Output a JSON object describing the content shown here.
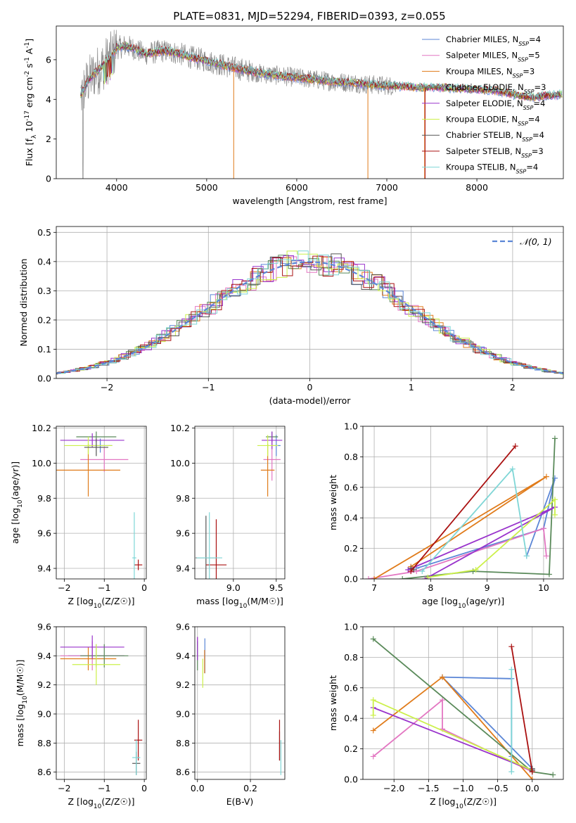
{
  "figure_title": "PLATE=0831, MJD=52294, FIBERID=0393, z=0.055",
  "colors": {
    "Chabrier MILES": "#5b86d6",
    "Salpeter MILES": "#e377c2",
    "Kroupa MILES": "#e07b1a",
    "Chabrier ELODIE": "#5a8a5a",
    "Salpeter ELODIE": "#9933cc",
    "Kroupa ELODIE": "#ccf04a",
    "Chabrier STELIB": "#555555",
    "Salpeter STELIB": "#aa1111",
    "Kroupa STELIB": "#7fd6d6",
    "grid": "#b0b0b0",
    "data": "#888888"
  },
  "chart_data": [
    {
      "id": "spectrum",
      "type": "line",
      "title": "PLATE=0831, MJD=52294, FIBERID=0393, z=0.055",
      "xlabel": "wavelength [Angstrom, rest frame]",
      "ylabel": "Flux [f_λ 10^-17 erg cm^-2 s^-1 A^-1]",
      "xlim": [
        3330,
        8960
      ],
      "ylim": [
        0,
        7.7
      ],
      "xticks": [
        "4000",
        "5000",
        "6000",
        "7000",
        "8000"
      ],
      "yticks": [
        "0",
        "2",
        "4",
        "6"
      ],
      "grid": false,
      "legend": "top-right",
      "data_knots": [
        [
          3600,
          4.2
        ],
        [
          3680,
          4.9
        ],
        [
          3750,
          5.3
        ],
        [
          3800,
          5.5
        ],
        [
          3850,
          5.7
        ],
        [
          3900,
          6.0
        ],
        [
          3950,
          6.2
        ],
        [
          4000,
          6.6
        ],
        [
          4100,
          6.7
        ],
        [
          4200,
          6.55
        ],
        [
          4300,
          6.3
        ],
        [
          4400,
          6.35
        ],
        [
          4500,
          6.45
        ],
        [
          4600,
          6.4
        ],
        [
          4700,
          6.3
        ],
        [
          4800,
          6.15
        ],
        [
          4900,
          6.05
        ],
        [
          5000,
          5.95
        ],
        [
          5200,
          5.7
        ],
        [
          5400,
          5.5
        ],
        [
          5600,
          5.3
        ],
        [
          5800,
          5.2
        ],
        [
          6000,
          5.1
        ],
        [
          6200,
          5.0
        ],
        [
          6400,
          4.9
        ],
        [
          6600,
          4.85
        ],
        [
          6800,
          4.75
        ],
        [
          7000,
          4.7
        ],
        [
          7200,
          4.65
        ],
        [
          7400,
          4.6
        ],
        [
          7600,
          4.6
        ],
        [
          7800,
          4.55
        ],
        [
          8000,
          4.5
        ],
        [
          8200,
          4.45
        ],
        [
          8400,
          4.25
        ],
        [
          8600,
          4.1
        ],
        [
          8800,
          4.2
        ],
        [
          8950,
          4.25
        ]
      ],
      "series": [
        {
          "name": "Chabrier MILES, N_SSP=4"
        },
        {
          "name": "Salpeter MILES, N_SSP=5"
        },
        {
          "name": "Kroupa MILES, N_SSP=3"
        },
        {
          "name": "Chabrier ELODIE, N_SSP=3"
        },
        {
          "name": "Salpeter ELODIE, N_SSP=4"
        },
        {
          "name": "Kroupa ELODIE, N_SSP=4"
        },
        {
          "name": "Chabrier STELIB, N_SSP=4"
        },
        {
          "name": "Salpeter STELIB, N_SSP=3"
        },
        {
          "name": "Kroupa STELIB, N_SSP=4"
        }
      ]
    },
    {
      "id": "residuals",
      "type": "line",
      "xlabel": "(data-model)/error",
      "ylabel": "Normed distribution",
      "xlim": [
        -2.5,
        2.5
      ],
      "ylim": [
        0,
        0.52
      ],
      "xticks": [
        "−2",
        "−1",
        "0",
        "1",
        "2"
      ],
      "yticks": [
        "0.0",
        "0.1",
        "0.2",
        "0.3",
        "0.4",
        "0.5"
      ],
      "grid": true,
      "legend": "top-right",
      "gaussian_label": "𝒩(0, 1)",
      "bin_width": 0.1,
      "histogram_offsets": [
        0.02,
        -0.03,
        0.015,
        -0.01,
        0.04,
        -0.025,
        0.01,
        0.03,
        -0.015
      ],
      "gaussian": {
        "mu": 0,
        "sigma": 1
      }
    },
    {
      "id": "age_vs_Z",
      "type": "scatter",
      "xlabel": "Z [log10(Z/Z☉)]",
      "ylabel": "age  [log10(age/yr)]",
      "xlim": [
        -2.2,
        0.05
      ],
      "ylim": [
        9.34,
        10.21
      ],
      "xticks": [
        "−2",
        "−1",
        "0"
      ],
      "yticks": [
        "9.4",
        "9.6",
        "9.8",
        "10.0",
        "10.2"
      ],
      "grid": true,
      "points": [
        {
          "series": "Chabrier MILES",
          "x": -1.1,
          "y": 10.1,
          "xerr": 0.3,
          "yerr": 0.04
        },
        {
          "series": "Salpeter MILES",
          "x": -1.0,
          "y": 10.02,
          "xerr": 0.6,
          "yerr": 0.07
        },
        {
          "series": "Kroupa MILES",
          "x": -1.4,
          "y": 9.96,
          "xerr": 0.8,
          "yerr": 0.15
        },
        {
          "series": "Chabrier ELODIE",
          "x": -1.2,
          "y": 10.15,
          "xerr": 0.5,
          "yerr": 0.03
        },
        {
          "series": "Salpeter ELODIE",
          "x": -1.3,
          "y": 10.13,
          "xerr": 0.8,
          "yerr": 0.04
        },
        {
          "series": "Kroupa ELODIE",
          "x": -1.4,
          "y": 10.1,
          "xerr": 0.6,
          "yerr": 0.05
        },
        {
          "series": "Chabrier STELIB",
          "x": -1.2,
          "y": 10.09,
          "xerr": 0.3,
          "yerr": 0.05
        },
        {
          "series": "Salpeter STELIB",
          "x": -0.15,
          "y": 9.42,
          "xerr": 0.1,
          "yerr": 0.03
        },
        {
          "series": "Kroupa STELIB",
          "x": -0.25,
          "y": 9.46,
          "xerr": 0.05,
          "yerr": 0.26
        }
      ]
    },
    {
      "id": "age_vs_mass",
      "type": "scatter",
      "xlabel": "mass [log10(M/M☉)]",
      "ylabel": "",
      "xlim": [
        8.55,
        9.6
      ],
      "ylim": [
        9.34,
        10.21
      ],
      "xticks": [
        "9.0",
        "9.5"
      ],
      "yticks": [
        "9.4",
        "9.6",
        "9.8",
        "10.0",
        "10.2"
      ],
      "grid": true,
      "points": [
        {
          "series": "Chabrier MILES",
          "x": 9.5,
          "y": 10.1,
          "xerr": 0.05,
          "yerr": 0.06
        },
        {
          "series": "Salpeter MILES",
          "x": 9.45,
          "y": 10.02,
          "xerr": 0.1,
          "yerr": 0.12
        },
        {
          "series": "Kroupa MILES",
          "x": 9.4,
          "y": 9.96,
          "xerr": 0.08,
          "yerr": 0.15
        },
        {
          "series": "Chabrier ELODIE",
          "x": 9.45,
          "y": 10.15,
          "xerr": 0.07,
          "yerr": 0.03
        },
        {
          "series": "Salpeter ELODIE",
          "x": 9.45,
          "y": 10.13,
          "xerr": 0.12,
          "yerr": 0.05
        },
        {
          "series": "Kroupa ELODIE",
          "x": 9.4,
          "y": 10.1,
          "xerr": 0.12,
          "yerr": 0.06
        },
        {
          "series": "Chabrier STELIB",
          "x": 8.68,
          "y": 9.46,
          "xerr": 0.12,
          "yerr": 0.24
        },
        {
          "series": "Salpeter STELIB",
          "x": 8.8,
          "y": 9.42,
          "xerr": 0.12,
          "yerr": 0.26
        },
        {
          "series": "Kroupa STELIB",
          "x": 8.72,
          "y": 9.46,
          "xerr": 0.15,
          "yerr": 0.26
        }
      ]
    },
    {
      "id": "weight_vs_age",
      "type": "line",
      "xlabel": "age  [log10(age/yr)]",
      "ylabel": "mass weight",
      "xlim": [
        6.8,
        10.35
      ],
      "ylim": [
        0,
        1
      ],
      "xticks": [
        "7",
        "8",
        "9",
        "10"
      ],
      "yticks": [
        "0.0",
        "0.2",
        "0.4",
        "0.6",
        "0.8",
        "1.0"
      ],
      "grid": true,
      "series": [
        {
          "name": "Chabrier MILES",
          "x": [
            7.75,
            10.0,
            10.2,
            9.7
          ],
          "y": [
            0.07,
            0.33,
            0.66,
            0.15
          ]
        },
        {
          "name": "Salpeter MILES",
          "x": [
            6.9,
            7.75,
            10.0,
            10.05
          ],
          "y": [
            0.0,
            0.05,
            0.33,
            0.15
          ]
        },
        {
          "name": "Kroupa MILES",
          "x": [
            7.0,
            10.05,
            7.65
          ],
          "y": [
            0.0,
            0.67,
            0.08
          ]
        },
        {
          "name": "Chabrier ELODIE",
          "x": [
            10.2,
            10.1,
            8.75,
            7.5
          ],
          "y": [
            0.92,
            0.03,
            0.05,
            0.0
          ]
        },
        {
          "name": "Salpeter ELODIE",
          "x": [
            7.6,
            10.2,
            7.9
          ],
          "y": [
            0.06,
            0.47,
            0.0
          ]
        },
        {
          "name": "Kroupa ELODIE",
          "x": [
            7.95,
            8.8,
            10.2,
            10.2
          ],
          "y": [
            0.01,
            0.06,
            0.52,
            0.42
          ]
        },
        {
          "name": "Chabrier STELIB",
          "x": [
            7.7,
            7.65
          ],
          "y": [
            0.06,
            0.07
          ]
        },
        {
          "name": "Salpeter STELIB",
          "x": [
            7.65,
            9.5
          ],
          "y": [
            0.05,
            0.87
          ]
        },
        {
          "name": "Kroupa STELIB",
          "x": [
            7.85,
            9.45,
            9.7
          ],
          "y": [
            0.05,
            0.72,
            0.15
          ]
        }
      ]
    },
    {
      "id": "mass_vs_Z",
      "type": "scatter",
      "xlabel": "Z [log10(Z/Z☉)]",
      "ylabel": "mass [log10(M/M☉)]",
      "xlim": [
        -2.2,
        0.05
      ],
      "ylim": [
        8.55,
        9.6
      ],
      "xticks": [
        "−2",
        "−1",
        "0"
      ],
      "yticks": [
        "8.6",
        "8.8",
        "9.0",
        "9.2",
        "9.4",
        "9.6"
      ],
      "grid": true,
      "points": [
        {
          "series": "Chabrier MILES",
          "x": -1.2,
          "y": 9.4,
          "xerr": 0.7,
          "yerr": 0.08
        },
        {
          "series": "Salpeter MILES",
          "x": -1.3,
          "y": 9.4,
          "xerr": 0.8,
          "yerr": 0.1
        },
        {
          "series": "Kroupa MILES",
          "x": -1.4,
          "y": 9.38,
          "xerr": 0.7,
          "yerr": 0.08
        },
        {
          "series": "Chabrier ELODIE",
          "x": -1.0,
          "y": 9.4,
          "xerr": 0.6,
          "yerr": 0.08
        },
        {
          "series": "Salpeter ELODIE",
          "x": -1.3,
          "y": 9.46,
          "xerr": 0.8,
          "yerr": 0.08
        },
        {
          "series": "Kroupa ELODIE",
          "x": -1.2,
          "y": 9.34,
          "xerr": 0.6,
          "yerr": 0.14
        },
        {
          "series": "Chabrier STELIB",
          "x": -0.2,
          "y": 8.66,
          "xerr": 0.1,
          "yerr": 0.08
        },
        {
          "series": "Salpeter STELIB",
          "x": -0.15,
          "y": 8.82,
          "xerr": 0.1,
          "yerr": 0.14
        },
        {
          "series": "Kroupa STELIB",
          "x": -0.2,
          "y": 8.7,
          "xerr": 0.1,
          "yerr": 0.12
        }
      ]
    },
    {
      "id": "mass_vs_ebv",
      "type": "scatter",
      "xlabel": "E(B-V)",
      "ylabel": "",
      "xlim": [
        -0.01,
        0.33
      ],
      "ylim": [
        8.55,
        9.6
      ],
      "xticks": [
        "0.0",
        "0.2"
      ],
      "yticks": [
        "8.6",
        "8.8",
        "9.0",
        "9.2",
        "9.4",
        "9.6"
      ],
      "grid": true,
      "points": [
        {
          "series": "Chabrier MILES",
          "x": 0.028,
          "y": 9.4,
          "yerr": 0.12
        },
        {
          "series": "Salpeter MILES",
          "x": 0.0,
          "y": 9.45,
          "yerr": 0.08
        },
        {
          "series": "Kroupa MILES",
          "x": 0.027,
          "y": 9.36,
          "yerr": 0.08
        },
        {
          "series": "Chabrier ELODIE",
          "x": 0.0,
          "y": 9.4,
          "yerr": 0.1
        },
        {
          "series": "Salpeter ELODIE",
          "x": 0.0,
          "y": 9.45,
          "yerr": 0.08
        },
        {
          "series": "Kroupa ELODIE",
          "x": 0.02,
          "y": 9.28,
          "yerr": 0.1
        },
        {
          "series": "Chabrier STELIB",
          "x": 0.31,
          "y": 8.78,
          "yerr": 0.1
        },
        {
          "series": "Salpeter STELIB",
          "x": 0.31,
          "y": 8.82,
          "yerr": 0.14
        },
        {
          "series": "Kroupa STELIB",
          "x": 0.315,
          "y": 8.7,
          "yerr": 0.12
        }
      ]
    },
    {
      "id": "weight_vs_Z",
      "type": "line",
      "xlabel": "Z [log10(Z/Z☉)]",
      "ylabel": "mass weight",
      "xlim": [
        -2.45,
        0.45
      ],
      "ylim": [
        0,
        1
      ],
      "xticks": [
        "−2.0",
        "−1.5",
        "−1.0",
        "−0.5",
        "0.0"
      ],
      "yticks": [
        "0.0",
        "0.2",
        "0.4",
        "0.6",
        "0.8",
        "1.0"
      ],
      "grid": true,
      "series": [
        {
          "name": "Chabrier MILES",
          "x": [
            -0.3,
            -0.3,
            -1.3,
            0.0
          ],
          "y": [
            0.15,
            0.66,
            0.67,
            0.07
          ]
        },
        {
          "name": "Salpeter MILES",
          "x": [
            -2.3,
            -1.3,
            -1.3,
            0.0
          ],
          "y": [
            0.15,
            0.52,
            0.33,
            0.05
          ]
        },
        {
          "name": "Kroupa MILES",
          "x": [
            -2.3,
            -1.3,
            0.0
          ],
          "y": [
            0.32,
            0.67,
            0.0
          ]
        },
        {
          "name": "Chabrier ELODIE",
          "x": [
            -2.3,
            0.0,
            0.3
          ],
          "y": [
            0.92,
            0.05,
            0.03
          ]
        },
        {
          "name": "Salpeter ELODIE",
          "x": [
            -2.3,
            0.0
          ],
          "y": [
            0.47,
            0.06
          ]
        },
        {
          "name": "Kroupa ELODIE",
          "x": [
            -2.3,
            -2.3,
            0.0
          ],
          "y": [
            0.42,
            0.52,
            0.06
          ]
        },
        {
          "name": "Chabrier STELIB",
          "x": [
            0.0,
            0.0
          ],
          "y": [
            0.07,
            0.06
          ]
        },
        {
          "name": "Salpeter STELIB",
          "x": [
            -0.3,
            0.0
          ],
          "y": [
            0.87,
            0.05
          ]
        },
        {
          "name": "Kroupa STELIB",
          "x": [
            -0.3,
            -0.3
          ],
          "y": [
            0.72,
            0.05
          ]
        }
      ]
    }
  ]
}
